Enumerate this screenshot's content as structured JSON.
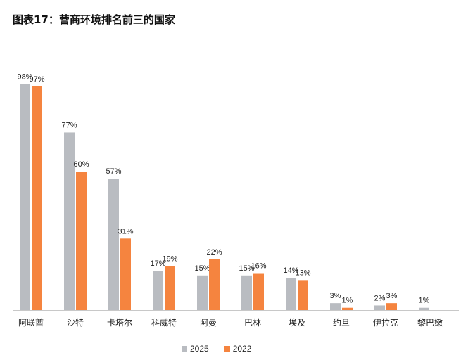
{
  "title": "图表17：营商环境排名前三的国家",
  "colors": {
    "s2025": "#b9bcc1",
    "s2022": "#f5843f"
  },
  "chart_data": {
    "type": "bar",
    "title": "图表17：营商环境排名前三的国家",
    "categories": [
      "阿联酋",
      "沙特",
      "卡塔尔",
      "科威特",
      "阿曼",
      "巴林",
      "埃及",
      "约旦",
      "伊拉克",
      "黎巴嫩"
    ],
    "series": [
      {
        "name": "2025",
        "values": [
          98,
          77,
          57,
          17,
          15,
          15,
          14,
          3,
          2,
          1
        ],
        "labels": [
          "98%",
          "77%",
          "57%",
          "17%",
          "15%",
          "15%",
          "14%",
          "3%",
          "2%",
          "1%"
        ]
      },
      {
        "name": "2022",
        "values": [
          97,
          60,
          31,
          19,
          22,
          16,
          13,
          1,
          3,
          0
        ],
        "labels": [
          "97%",
          "60%",
          "31%",
          "19%",
          "22%",
          "16%",
          "13%",
          "1%",
          "3%",
          ""
        ]
      }
    ],
    "ylim": [
      0,
      100
    ],
    "grid": false,
    "legend": "bottom",
    "xlabel": "",
    "ylabel": ""
  }
}
